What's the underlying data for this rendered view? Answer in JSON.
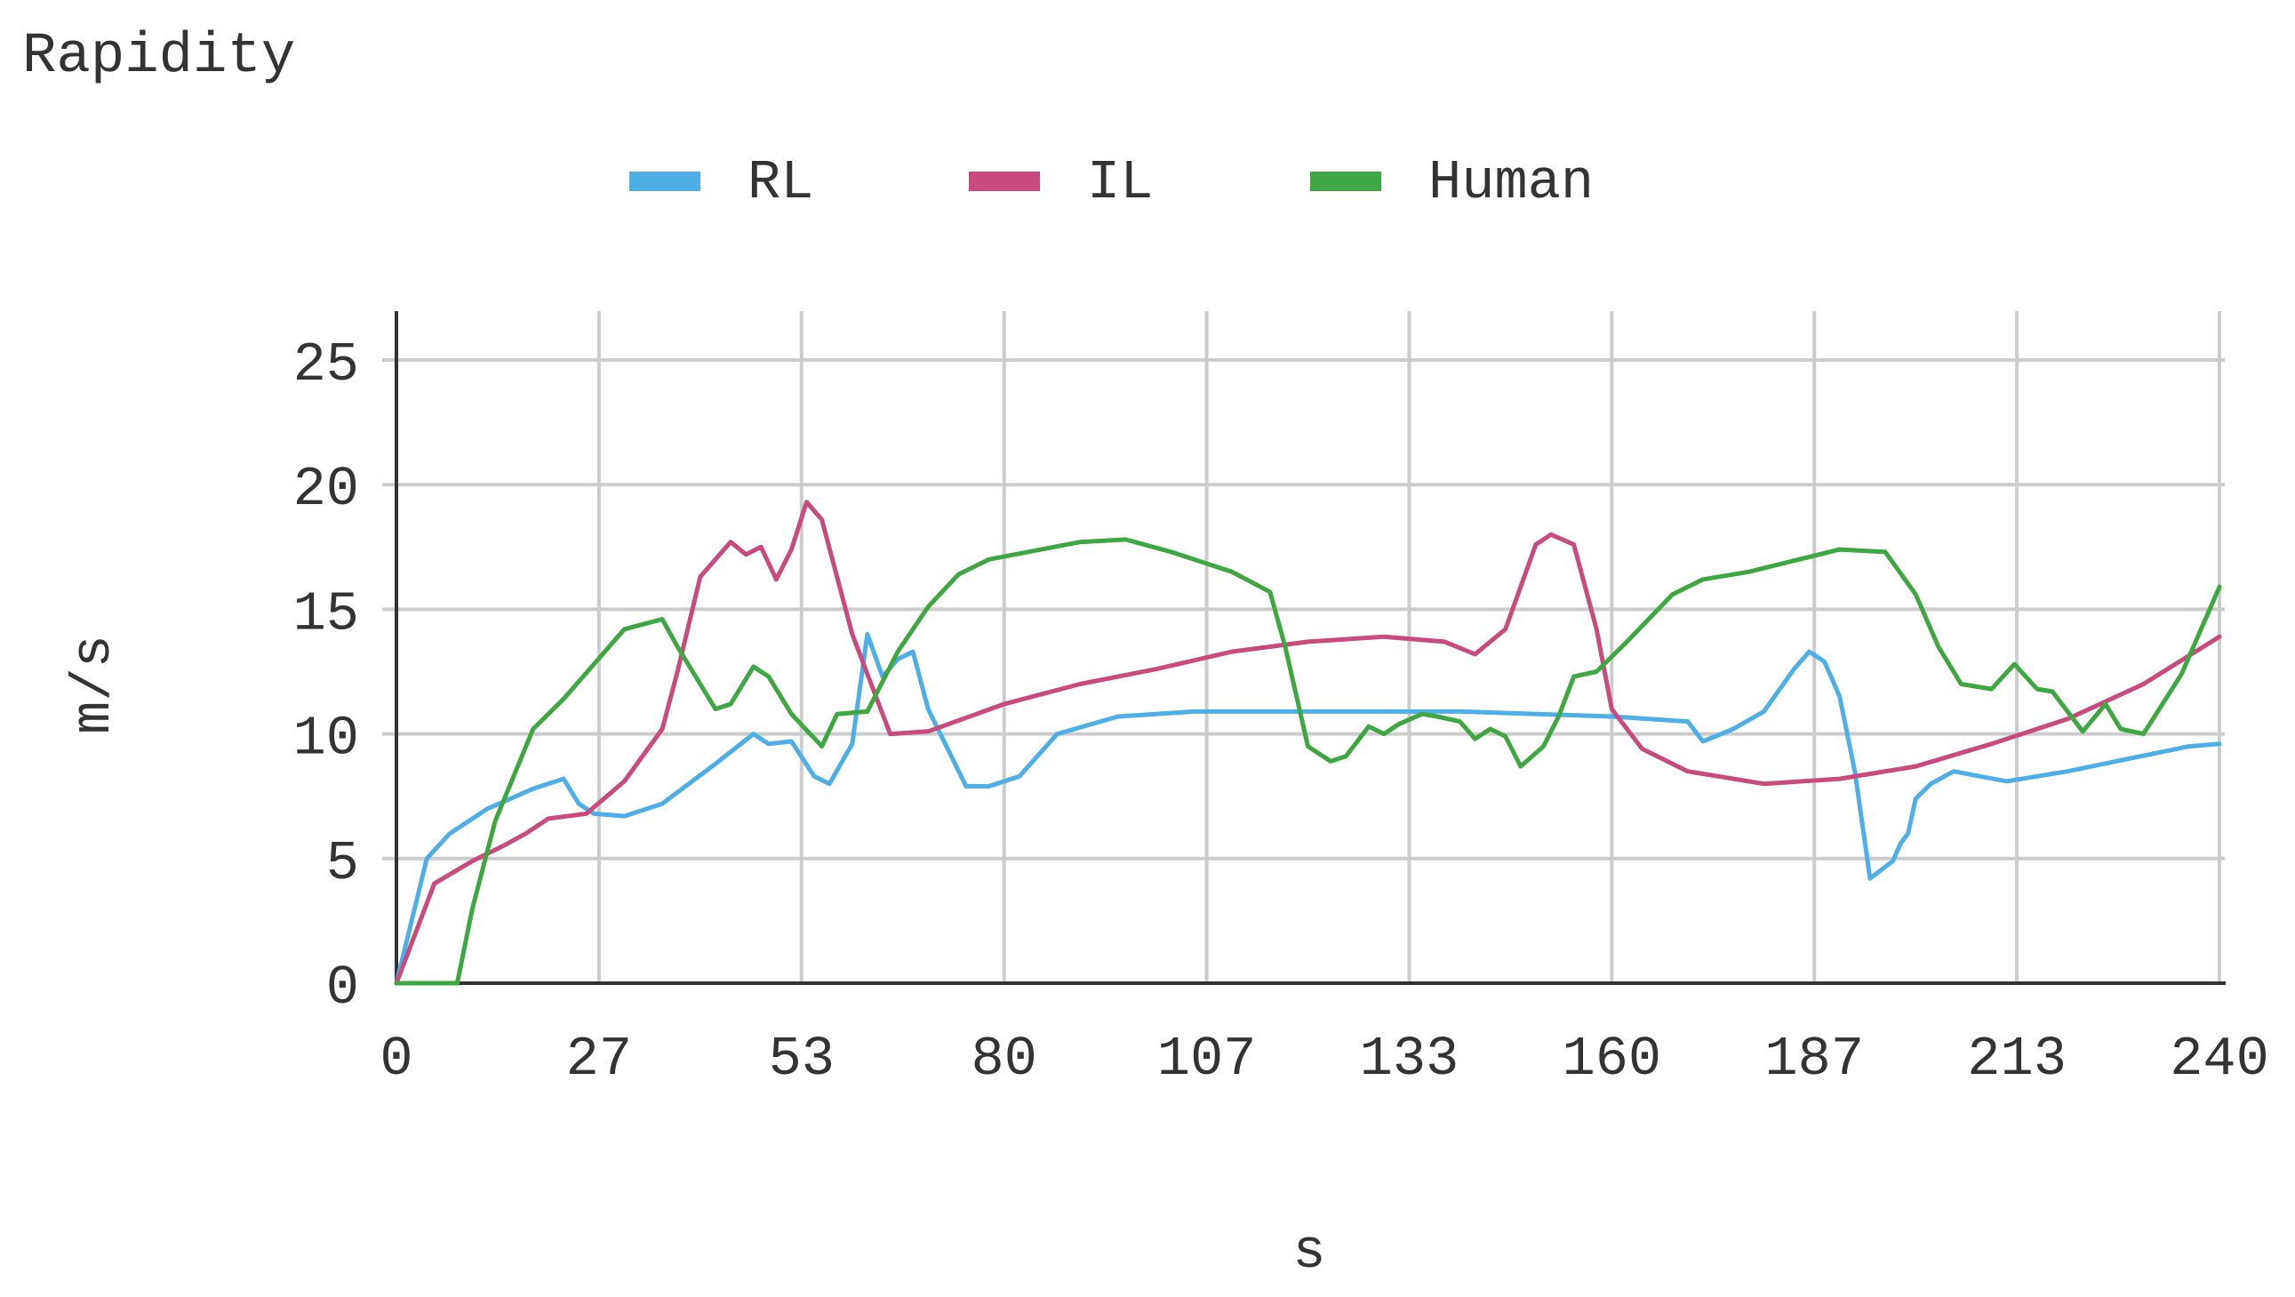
{
  "chart_data": {
    "type": "line",
    "title": "Rapidity",
    "xlabel": "s",
    "ylabel": "m/s",
    "xlim": [
      0,
      240
    ],
    "ylim": [
      0,
      25
    ],
    "x_ticks": [
      "0",
      "27",
      "53",
      "80",
      "107",
      "133",
      "160",
      "187",
      "213",
      "240"
    ],
    "y_ticks": [
      "0",
      "5",
      "10",
      "15",
      "20",
      "25"
    ],
    "grid": true,
    "legend_position": "top",
    "series": [
      {
        "name": "RL",
        "color": "#4eaee6",
        "x": [
          0,
          4,
          7,
          12,
          18,
          22,
          24,
          26,
          30,
          35,
          42,
          47,
          49,
          52,
          55,
          57,
          60,
          62,
          64,
          66,
          68,
          70,
          75,
          78,
          82,
          87,
          95,
          105,
          120,
          140,
          160,
          170,
          172,
          176,
          180,
          184,
          186,
          188,
          190,
          192,
          194,
          197,
          198,
          199,
          200,
          202,
          205,
          212,
          220,
          228,
          236,
          240
        ],
        "y": [
          0,
          5,
          6,
          7,
          7.8,
          8.2,
          7.2,
          6.8,
          6.7,
          7.2,
          8.8,
          10,
          9.6,
          9.7,
          8.3,
          8,
          9.6,
          14,
          12.3,
          13,
          13.3,
          11,
          7.9,
          7.9,
          8.3,
          10,
          10.7,
          10.9,
          10.9,
          10.9,
          10.7,
          10.5,
          9.7,
          10.2,
          10.9,
          12.6,
          13.3,
          12.9,
          11.5,
          8.5,
          4.2,
          4.9,
          5.6,
          6,
          7.4,
          8,
          8.5,
          8.1,
          8.5,
          9,
          9.5,
          9.6
        ]
      },
      {
        "name": "IL",
        "color": "#c94a7d",
        "x": [
          0,
          5,
          10,
          14,
          17,
          20,
          25,
          30,
          35,
          37,
          40,
          44,
          46,
          48,
          50,
          52,
          54,
          56,
          60,
          65,
          70,
          80,
          90,
          100,
          110,
          120,
          130,
          138,
          142,
          146,
          150,
          152,
          155,
          158,
          160,
          164,
          170,
          180,
          190,
          200,
          210,
          220,
          230,
          240
        ],
        "y": [
          0,
          4,
          4.9,
          5.5,
          6,
          6.6,
          6.8,
          8.1,
          10.2,
          12.5,
          16.3,
          17.7,
          17.2,
          17.5,
          16.2,
          17.4,
          19.3,
          18.6,
          14,
          10,
          10.1,
          11.2,
          12,
          12.6,
          13.3,
          13.7,
          13.9,
          13.7,
          13.2,
          14.2,
          17.6,
          18,
          17.6,
          14.2,
          11,
          9.4,
          8.5,
          8,
          8.2,
          8.7,
          9.6,
          10.6,
          12,
          13.9
        ]
      },
      {
        "name": "Human",
        "color": "#3ea642",
        "x": [
          0,
          4,
          8,
          10,
          13,
          18,
          22,
          26,
          30,
          35,
          37,
          40,
          42,
          44,
          47,
          49,
          52,
          56,
          58,
          62,
          64,
          66,
          70,
          74,
          78,
          90,
          96,
          102,
          110,
          115,
          117,
          120,
          123,
          125,
          128,
          130,
          132,
          135,
          137,
          140,
          142,
          144,
          146,
          148,
          151,
          153,
          155,
          158,
          162,
          168,
          172,
          178,
          190,
          196,
          200,
          203,
          206,
          210,
          213,
          216,
          218,
          222,
          225,
          227,
          230,
          235,
          240
        ],
        "y": [
          0,
          0,
          0,
          3,
          6.5,
          10.2,
          11.4,
          12.8,
          14.2,
          14.6,
          13.5,
          12,
          11,
          11.2,
          12.7,
          12.3,
          10.8,
          9.5,
          10.8,
          10.9,
          12.1,
          13.3,
          15.1,
          16.4,
          17,
          17.7,
          17.8,
          17.3,
          16.5,
          15.7,
          13.5,
          9.5,
          8.9,
          9.1,
          10.3,
          10,
          10.4,
          10.8,
          10.7,
          10.5,
          9.8,
          10.2,
          9.9,
          8.7,
          9.5,
          10.7,
          12.3,
          12.5,
          13.7,
          15.6,
          16.2,
          16.5,
          17.4,
          17.3,
          15.6,
          13.5,
          12,
          11.8,
          12.8,
          11.8,
          11.7,
          10.1,
          11.2,
          10.2,
          10,
          12.4,
          15.9
        ]
      }
    ]
  }
}
